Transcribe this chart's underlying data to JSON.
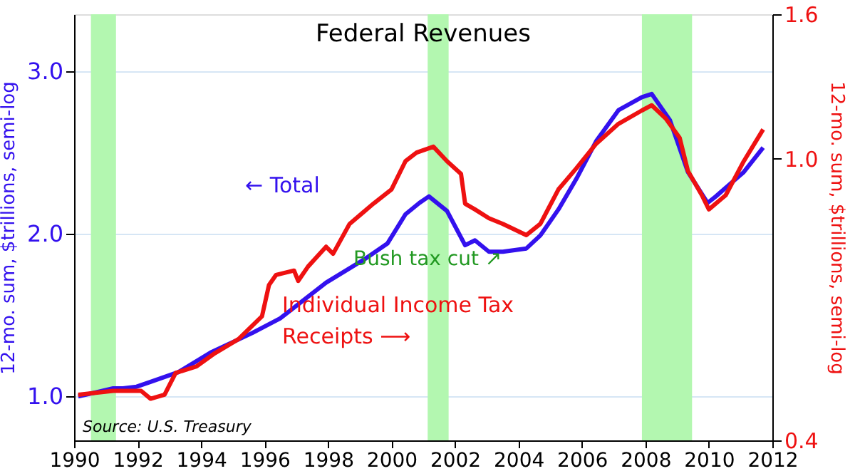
{
  "chart_data": {
    "type": "line",
    "title": "Federal Revenues",
    "ylabel": "12-mo. sum, $trillions, semi-log",
    "y2label": "12-mo. sum, $trillions, semi-log",
    "xlim": [
      1990,
      2012
    ],
    "xticks": [
      1990,
      1992,
      1994,
      1996,
      1998,
      2000,
      2002,
      2004,
      2006,
      2008,
      2010,
      2012
    ],
    "ylim": [
      0.73,
      3.35
    ],
    "yticks": [
      {
        "value": 1,
        "label": "1.0"
      },
      {
        "value": 2,
        "label": "2.0"
      },
      {
        "value": 3,
        "label": "3.0"
      }
    ],
    "y2lim": [
      0.4,
      1.6
    ],
    "y2ticks": [
      {
        "value": 0.4,
        "label": "0.4"
      },
      {
        "value": 1,
        "label": "1.0"
      },
      {
        "value": 1.6,
        "label": "1.6"
      }
    ],
    "log": "y2",
    "grid": "y",
    "series": [
      {
        "color": "#3311ee",
        "x": [
          1990.13,
          1991.23,
          1991.54,
          1991.97,
          1992.41,
          1993.29,
          1994.3,
          1995.61,
          1996.49,
          1997.94,
          1999.12,
          1999.87,
          2000.44,
          2000.88,
          2001.18,
          2001.75,
          2002.32,
          2002.63,
          2003.07,
          2003.51,
          2004.25,
          2004.69,
          2005.26,
          2005.83,
          2006.45,
          2007.15,
          2007.89,
          2008.2,
          2008.77,
          2009.34,
          2009.96,
          2010.22,
          2011.1,
          2011.71
        ],
        "values": [
          1.0,
          1.05,
          1.05,
          1.06,
          1.09,
          1.15,
          1.27,
          1.39,
          1.48,
          1.7,
          1.84,
          1.94,
          2.12,
          2.19,
          2.23,
          2.14,
          1.93,
          1.96,
          1.89,
          1.89,
          1.91,
          1.99,
          2.15,
          2.34,
          2.57,
          2.76,
          2.84,
          2.86,
          2.7,
          2.38,
          2.19,
          2.23,
          2.38,
          2.53
        ]
      },
      {
        "color": "#ee1111",
        "axis": "y2",
        "x": [
          1990.13,
          1991.23,
          1992.11,
          1992.41,
          1992.85,
          1993.2,
          1993.86,
          1994.43,
          1995.18,
          1995.92,
          1996.14,
          1996.36,
          1996.93,
          1997.06,
          1997.37,
          1997.94,
          1998.16,
          1998.68,
          1999.43,
          2000.0,
          2000.44,
          2000.79,
          2001.32,
          2001.75,
          2002.19,
          2002.32,
          2002.63,
          2003.07,
          2003.51,
          2004.25,
          2004.69,
          2005.26,
          2005.83,
          2006.45,
          2007.15,
          2007.89,
          2008.2,
          2008.64,
          2009.08,
          2009.34,
          2009.78,
          2010.0,
          2010.53,
          2011.1,
          2011.71
        ],
        "values": [
          0.464,
          0.47,
          0.47,
          0.458,
          0.464,
          0.498,
          0.509,
          0.531,
          0.556,
          0.599,
          0.663,
          0.685,
          0.695,
          0.672,
          0.704,
          0.751,
          0.734,
          0.809,
          0.864,
          0.905,
          0.992,
          1.02,
          1.04,
          0.992,
          0.952,
          0.864,
          0.848,
          0.824,
          0.809,
          0.78,
          0.809,
          0.905,
          0.97,
          1.05,
          1.12,
          1.17,
          1.19,
          1.14,
          1.07,
          0.961,
          0.888,
          0.848,
          0.888,
          0.992,
          1.1
        ]
      }
    ],
    "bands": [
      {
        "axis": "x",
        "from": 1990.53,
        "to": 1991.32,
        "color": "#b3f7b0"
      },
      {
        "axis": "x",
        "from": 2001.14,
        "to": 2001.8,
        "color": "#b3f7b0"
      },
      {
        "axis": "x",
        "from": 2007.89,
        "to": 2009.47,
        "color": "#b3f7b0"
      }
    ],
    "annotations": [
      "← Total",
      "Bush tax cut ↗",
      "Individual Income Tax\nReceipts ⟶",
      "Source:  U.S. Treasury"
    ]
  }
}
